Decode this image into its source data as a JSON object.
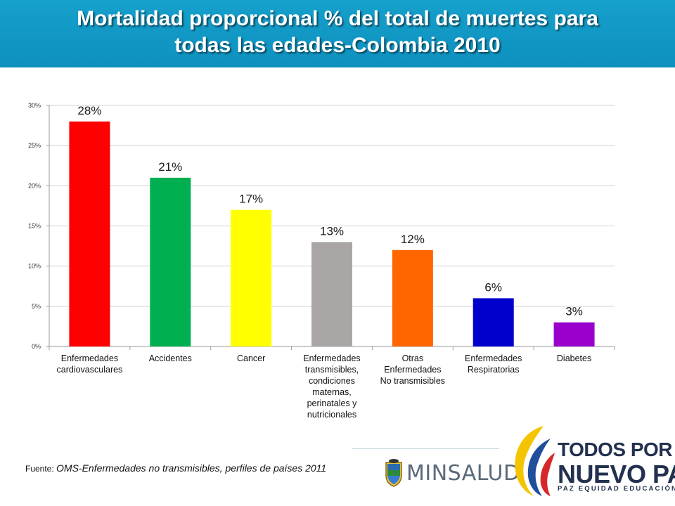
{
  "header": {
    "title_line1": "Mortalidad proporcional  % del total de muertes para",
    "title_line2": "todas las edades-Colombia 2010",
    "background": "#1199c8"
  },
  "chart_data": {
    "type": "bar",
    "title": "Mortalidad proporcional  % del total de muertes para todas las edades-Colombia 2010",
    "categories": [
      "Enfermedades\ncardiovasculares",
      "Accidentes",
      "Cancer",
      "Enfermedades\ntransmisibles,\ncondiciones\nmaternas,\nperinatales y\nnutricionales",
      "Otras\nEnfermedades\nNo transmisibles",
      "Enfermedades\nRespiratorias",
      "Diabetes"
    ],
    "values": [
      28,
      21,
      17,
      13,
      12,
      6,
      3
    ],
    "data_labels": [
      "28%",
      "21%",
      "17%",
      "13%",
      "12%",
      "6%",
      "3%"
    ],
    "colors": [
      "#ff0000",
      "#00b050",
      "#ffff00",
      "#aaa6a6",
      "#ff6600",
      "#0000cc",
      "#9900cc"
    ],
    "ylim": [
      0,
      30
    ],
    "yticks": [
      0,
      5,
      10,
      15,
      20,
      25,
      30
    ],
    "ytick_labels": [
      "0%",
      "5%",
      "10%",
      "15%",
      "20%",
      "25%",
      "30%"
    ],
    "grid": true,
    "xlabel": "",
    "ylabel": ""
  },
  "footer": {
    "source_prefix": "Fuente: ",
    "source_text": "OMS-Enfermedades no transmisibles, perfiles de países 2011",
    "minsalud_label": "MINSALUD",
    "brand_line1": "TODOS POR UN",
    "brand_line2": "NUEVO PAÍS",
    "brand_line3": "PAZ  EQUIDAD  EDUCACIÓN"
  }
}
